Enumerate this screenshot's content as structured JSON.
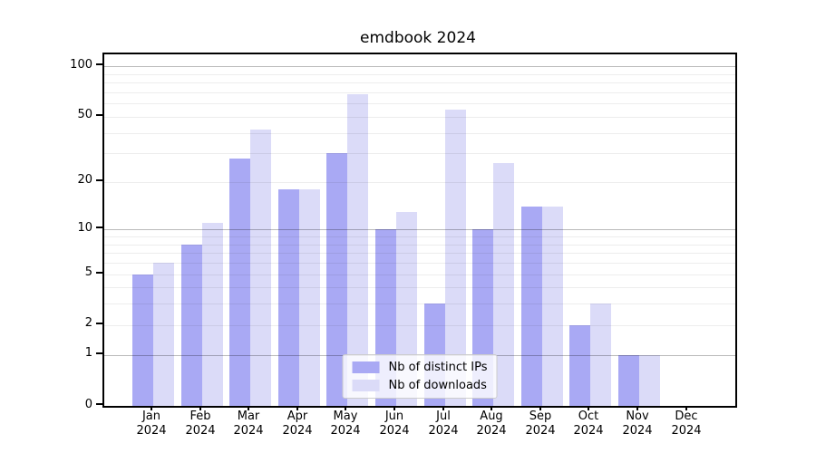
{
  "chart_data": {
    "type": "bar",
    "title": "emdbook 2024",
    "categories": [
      "Jan",
      "Feb",
      "Mar",
      "Apr",
      "May",
      "Jun",
      "Jul",
      "Aug",
      "Sep",
      "Oct",
      "Nov",
      "Dec"
    ],
    "category_year": "2024",
    "series": [
      {
        "name": "Nb of distinct IPs",
        "color": "#a9a9f4",
        "values": [
          5,
          8,
          28,
          18,
          30,
          10,
          3,
          10,
          14,
          2,
          1,
          0
        ]
      },
      {
        "name": "Nb of downloads",
        "color": "#dbdbf8",
        "values": [
          6,
          11,
          42,
          18,
          68,
          13,
          55,
          26,
          14,
          3,
          1,
          0
        ]
      }
    ],
    "yscale": "log1p",
    "ylim": [
      0,
      118
    ],
    "y_ticks": [
      0,
      1,
      2,
      5,
      10,
      20,
      50,
      100
    ],
    "y_gridlines_major": [
      1,
      10,
      100
    ],
    "y_gridlines_minor": [
      2,
      3,
      4,
      5,
      6,
      7,
      8,
      9,
      20,
      30,
      40,
      50,
      60,
      70,
      80,
      90
    ],
    "xlabel": "",
    "ylabel": "",
    "grid": true,
    "legend_position": "lower center",
    "colors": {
      "background": "#ffffff",
      "axis": "#000000",
      "grid_minor": "#ededed",
      "grid_major": "#bababa",
      "legend_border": "#cccccc"
    }
  }
}
